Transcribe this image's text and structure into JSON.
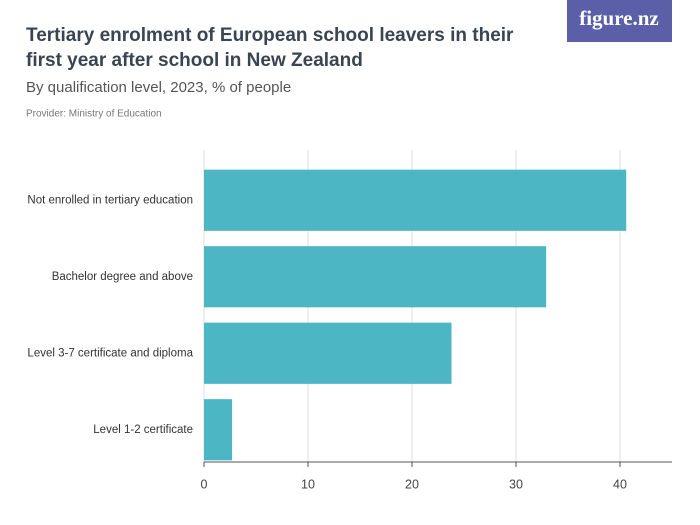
{
  "logo": "figure.nz",
  "chart_data": {
    "type": "bar",
    "orientation": "horizontal",
    "title": "Tertiary enrolment of European school leavers in their first year after school in New Zealand",
    "subtitle": "By qualification level, 2023, % of people",
    "provider": "Provider: Ministry of Education",
    "categories": [
      "Not enrolled in tertiary education",
      "Bachelor degree and above",
      "Level 3-7 certificate and diploma",
      "Level 1-2 certificate"
    ],
    "values": [
      40.6,
      32.9,
      23.8,
      2.7
    ],
    "color": "#4db6c4",
    "xlim": [
      0,
      45
    ],
    "xticks": [
      0,
      10,
      20,
      30,
      40
    ],
    "grid": true
  }
}
